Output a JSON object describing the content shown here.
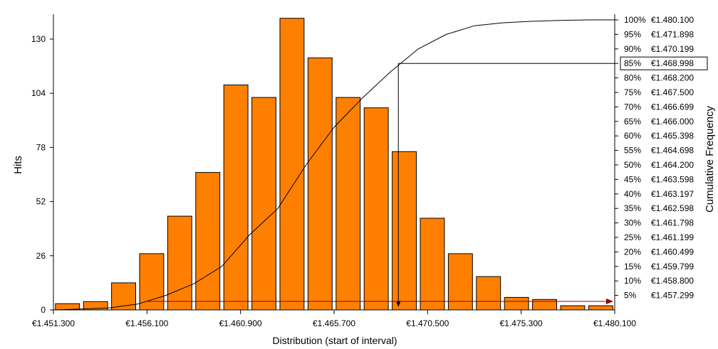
{
  "chart_data": {
    "type": "bar",
    "xlabel": "Distribution (start of interval)",
    "ylabel": "Hits",
    "y2label": "Cumulative Frequency",
    "ylim": [
      0,
      130
    ],
    "yticks": [
      0,
      26,
      52,
      78,
      104,
      130
    ],
    "xlim": [
      1451.3,
      1480.1
    ],
    "xtick_values": [
      1451.3,
      1456.1,
      1460.9,
      1465.7,
      1470.5,
      1475.3,
      1480.1
    ],
    "xtick_labels": [
      "€1.451.300",
      "€1.456.100",
      "€1.460.900",
      "€1.465.700",
      "€1.470.500",
      "€1.475.300",
      "€1.480.100"
    ],
    "bar_color": "#ff8000",
    "bin_width": 1.44,
    "bins_start": [
      1451.3,
      1452.74,
      1454.18,
      1455.62,
      1457.06,
      1458.5,
      1459.94,
      1461.38,
      1462.82,
      1464.26,
      1465.7,
      1467.14,
      1468.58,
      1470.02,
      1471.46,
      1472.9,
      1474.34,
      1475.78,
      1477.22,
      1478.66
    ],
    "values": [
      3,
      4,
      13,
      27,
      45,
      66,
      108,
      102,
      140,
      121,
      102,
      97,
      76,
      44,
      27,
      16,
      6,
      5,
      2,
      2
    ],
    "cumulative_levels": [
      {
        "pct": "100%",
        "value": "€1.480.100"
      },
      {
        "pct": "95%",
        "value": "€1.471.898"
      },
      {
        "pct": "90%",
        "value": "€1.470.199"
      },
      {
        "pct": "85%",
        "value": "€1.468.998",
        "highlight": true
      },
      {
        "pct": "80%",
        "value": "€1.468.200"
      },
      {
        "pct": "75%",
        "value": "€1.467.500"
      },
      {
        "pct": "70%",
        "value": "€1.466.699"
      },
      {
        "pct": "65%",
        "value": "€1.466.000"
      },
      {
        "pct": "60%",
        "value": "€1.465.398"
      },
      {
        "pct": "55%",
        "value": "€1.464.698"
      },
      {
        "pct": "50%",
        "value": "€1.464.200"
      },
      {
        "pct": "45%",
        "value": "€1.463.598"
      },
      {
        "pct": "40%",
        "value": "€1.463.197"
      },
      {
        "pct": "35%",
        "value": "€1.462.598"
      },
      {
        "pct": "30%",
        "value": "€1.461.798"
      },
      {
        "pct": "25%",
        "value": "€1.461.199"
      },
      {
        "pct": "20%",
        "value": "€1.460.499"
      },
      {
        "pct": "15%",
        "value": "€1.459.799"
      },
      {
        "pct": "10%",
        "value": "€1.458.800"
      },
      {
        "pct": "5%",
        "value": "€1.457.299"
      }
    ],
    "cumulative_curve": {
      "color": "#000000",
      "points": [
        [
          1451.3,
          0
        ],
        [
          1452.74,
          0.3
        ],
        [
          1454.18,
          0.7
        ],
        [
          1455.62,
          2
        ],
        [
          1457.06,
          5
        ],
        [
          1458.5,
          9
        ],
        [
          1459.94,
          15
        ],
        [
          1461.38,
          26
        ],
        [
          1462.82,
          35
        ],
        [
          1464.26,
          50
        ],
        [
          1465.7,
          63
        ],
        [
          1467.14,
          73
        ],
        [
          1468.58,
          82
        ],
        [
          1470.02,
          90
        ],
        [
          1471.46,
          95
        ],
        [
          1472.9,
          98
        ],
        [
          1474.34,
          99
        ],
        [
          1475.78,
          99.5
        ],
        [
          1477.22,
          99.8
        ],
        [
          1478.66,
          100
        ]
      ]
    },
    "marker": {
      "pct": 85,
      "x": 1468.998,
      "color": "#8b0000"
    },
    "grid": false,
    "legend": "none"
  }
}
